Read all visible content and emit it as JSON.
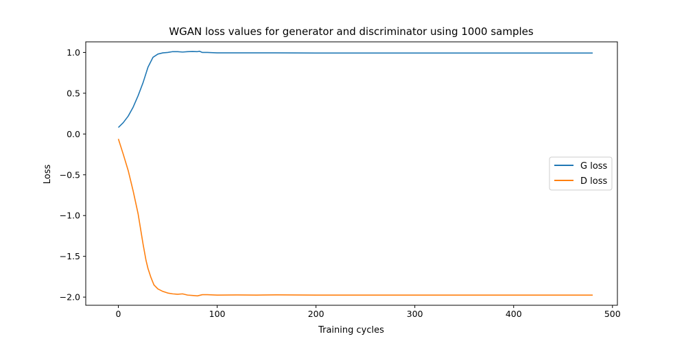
{
  "chart_data": {
    "type": "line",
    "title": "WGAN loss values for generator and discriminator using 1000 samples",
    "xlabel": "Training cycles",
    "ylabel": "Loss",
    "xlim": [
      -33,
      505
    ],
    "ylim": [
      -2.1,
      1.13
    ],
    "xticks": [
      0,
      100,
      200,
      300,
      400,
      500
    ],
    "yticks": [
      1.0,
      0.5,
      0.0,
      -0.5,
      -1.0,
      -1.5,
      -2.0
    ],
    "ytick_labels": [
      "1.0",
      "0.5",
      "0.0",
      "−0.5",
      "−1.0",
      "−1.5",
      "−2.0"
    ],
    "grid": false,
    "legend_position": "center-right",
    "series": [
      {
        "name": "G loss",
        "color": "#1f77b4",
        "points": [
          [
            0,
            0.08
          ],
          [
            5,
            0.14
          ],
          [
            10,
            0.22
          ],
          [
            15,
            0.33
          ],
          [
            20,
            0.47
          ],
          [
            25,
            0.63
          ],
          [
            30,
            0.82
          ],
          [
            35,
            0.94
          ],
          [
            40,
            0.98
          ],
          [
            45,
            0.995
          ],
          [
            50,
            1.0
          ],
          [
            55,
            1.01
          ],
          [
            60,
            1.01
          ],
          [
            65,
            1.005
          ],
          [
            70,
            1.01
          ],
          [
            75,
            1.012
          ],
          [
            80,
            1.01
          ],
          [
            82,
            1.015
          ],
          [
            85,
            1.0
          ],
          [
            90,
            1.0
          ],
          [
            100,
            0.995
          ],
          [
            120,
            0.995
          ],
          [
            140,
            0.995
          ],
          [
            160,
            0.995
          ],
          [
            200,
            0.993
          ],
          [
            250,
            0.993
          ],
          [
            300,
            0.993
          ],
          [
            350,
            0.993
          ],
          [
            400,
            0.993
          ],
          [
            450,
            0.993
          ],
          [
            480,
            0.993
          ]
        ]
      },
      {
        "name": "D loss",
        "color": "#ff7f0e",
        "points": [
          [
            0,
            -0.06
          ],
          [
            5,
            -0.25
          ],
          [
            10,
            -0.45
          ],
          [
            15,
            -0.7
          ],
          [
            20,
            -0.98
          ],
          [
            25,
            -1.35
          ],
          [
            28,
            -1.55
          ],
          [
            30,
            -1.65
          ],
          [
            33,
            -1.76
          ],
          [
            36,
            -1.85
          ],
          [
            40,
            -1.9
          ],
          [
            45,
            -1.93
          ],
          [
            50,
            -1.95
          ],
          [
            55,
            -1.96
          ],
          [
            60,
            -1.965
          ],
          [
            65,
            -1.96
          ],
          [
            70,
            -1.975
          ],
          [
            75,
            -1.98
          ],
          [
            80,
            -1.985
          ],
          [
            85,
            -1.97
          ],
          [
            90,
            -1.97
          ],
          [
            100,
            -1.975
          ],
          [
            120,
            -1.973
          ],
          [
            140,
            -1.975
          ],
          [
            160,
            -1.972
          ],
          [
            200,
            -1.975
          ],
          [
            250,
            -1.975
          ],
          [
            300,
            -1.975
          ],
          [
            350,
            -1.975
          ],
          [
            400,
            -1.975
          ],
          [
            450,
            -1.975
          ],
          [
            480,
            -1.975
          ]
        ]
      }
    ]
  }
}
